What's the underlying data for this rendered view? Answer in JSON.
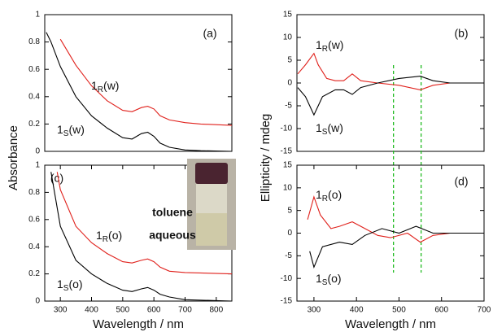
{
  "chart_data": [
    {
      "type": "line",
      "label": "(a)",
      "ylabel": "Absorbance",
      "xlim": [
        250,
        850
      ],
      "ylim": [
        0,
        1
      ],
      "yticks": [
        0,
        0.2,
        0.4,
        0.6,
        0.8,
        1
      ],
      "series": [
        {
          "name": "1R(w)",
          "color": "#e0201b",
          "x": [
            300,
            350,
            400,
            450,
            500,
            530,
            560,
            580,
            600,
            620,
            650,
            700,
            750,
            850
          ],
          "values": [
            0.82,
            0.63,
            0.48,
            0.37,
            0.3,
            0.29,
            0.32,
            0.33,
            0.31,
            0.26,
            0.23,
            0.21,
            0.2,
            0.19
          ]
        },
        {
          "name": "1S(w)",
          "color": "#000000",
          "x": [
            255,
            270,
            300,
            350,
            400,
            450,
            500,
            530,
            560,
            580,
            600,
            620,
            650,
            700,
            750,
            850
          ],
          "values": [
            0.87,
            0.8,
            0.62,
            0.4,
            0.26,
            0.17,
            0.1,
            0.09,
            0.13,
            0.14,
            0.11,
            0.06,
            0.03,
            0.01,
            0.005,
            0
          ]
        }
      ]
    },
    {
      "type": "line",
      "label": "(b)",
      "ylabel": "Ellipticity  /  mdeg",
      "xlim": [
        260,
        700
      ],
      "ylim": [
        -15,
        15
      ],
      "yticks": [
        -15,
        -10,
        -5,
        0,
        5,
        10,
        15
      ],
      "vlines": [
        487,
        552
      ],
      "series": [
        {
          "name": "1R(w)",
          "color": "#e0201b",
          "x": [
            262,
            280,
            300,
            310,
            330,
            350,
            370,
            390,
            410,
            450,
            500,
            550,
            580,
            620,
            700
          ],
          "values": [
            2,
            4,
            6.5,
            4,
            1,
            0.5,
            0.5,
            2,
            0.5,
            0,
            -0.5,
            -1.5,
            -0.5,
            0,
            0
          ]
        },
        {
          "name": "1S(w)",
          "color": "#000000",
          "x": [
            262,
            280,
            300,
            320,
            350,
            370,
            390,
            410,
            450,
            500,
            550,
            580,
            620,
            700
          ],
          "values": [
            -1,
            -3,
            -7,
            -3,
            -1.5,
            -1.5,
            -2.5,
            -1,
            0,
            1,
            1.5,
            0.5,
            0,
            0
          ]
        }
      ]
    },
    {
      "type": "line",
      "label": "(c)",
      "xlabel": "Wavelength  /  nm",
      "xlim": [
        250,
        850
      ],
      "xticks": [
        300,
        400,
        500,
        600,
        700,
        800
      ],
      "ylim": [
        0,
        1
      ],
      "yticks": [
        0,
        0.2,
        0.4,
        0.6,
        0.8,
        1
      ],
      "inset": {
        "top": "toluene",
        "bottom": "aqueous"
      },
      "series": [
        {
          "name": "1R(o)",
          "color": "#e0201b",
          "x": [
            290,
            300,
            350,
            400,
            450,
            500,
            530,
            560,
            580,
            600,
            620,
            650,
            700,
            850
          ],
          "values": [
            0.95,
            0.82,
            0.55,
            0.43,
            0.35,
            0.29,
            0.28,
            0.3,
            0.31,
            0.29,
            0.25,
            0.22,
            0.21,
            0.2
          ]
        },
        {
          "name": "1S(o)",
          "color": "#000000",
          "x": [
            270,
            300,
            350,
            400,
            450,
            500,
            530,
            560,
            580,
            600,
            620,
            650,
            700,
            850
          ],
          "values": [
            0.95,
            0.55,
            0.3,
            0.2,
            0.13,
            0.08,
            0.07,
            0.09,
            0.1,
            0.08,
            0.05,
            0.03,
            0.01,
            0
          ]
        }
      ]
    },
    {
      "type": "line",
      "label": "(d)",
      "xlabel": "Wavelength  /  nm",
      "xlim": [
        260,
        700
      ],
      "xticks": [
        300,
        400,
        500,
        600,
        700
      ],
      "ylim": [
        -15,
        15
      ],
      "yticks": [
        -15,
        -10,
        -5,
        0,
        5,
        10,
        15
      ],
      "series": [
        {
          "name": "1R(o)",
          "color": "#e0201b",
          "x": [
            285,
            300,
            315,
            340,
            360,
            390,
            420,
            450,
            480,
            520,
            550,
            580,
            620,
            700
          ],
          "values": [
            3,
            8,
            4,
            1,
            1.5,
            2.5,
            1,
            -0.5,
            -1,
            0,
            -2,
            -0.5,
            0,
            0
          ]
        },
        {
          "name": "1S(o)",
          "color": "#000000",
          "x": [
            290,
            300,
            320,
            360,
            390,
            420,
            460,
            500,
            540,
            580,
            700
          ],
          "values": [
            -4,
            -7.5,
            -3,
            -2,
            -2.5,
            -0.5,
            1,
            0,
            1.5,
            0,
            0
          ]
        }
      ]
    }
  ]
}
